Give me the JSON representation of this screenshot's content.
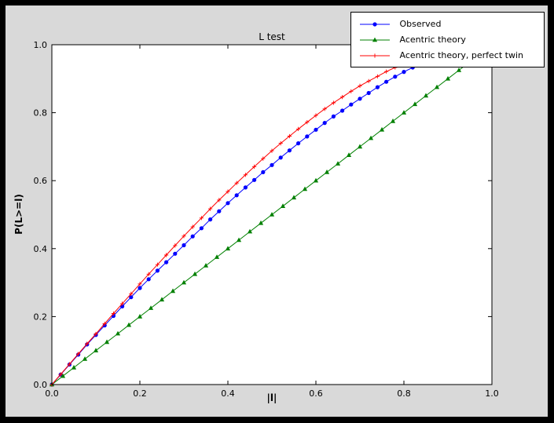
{
  "window": {
    "background": "#000000"
  },
  "figure": {
    "background": "#d9d9d9",
    "plot_background": "#ffffff",
    "frame_color": "#000000"
  },
  "chart_data": {
    "type": "line",
    "title": "L test",
    "xlabel": "|l|",
    "ylabel": "P(L>=l)",
    "xlim": [
      0,
      1
    ],
    "ylim": [
      0,
      1
    ],
    "grid": false,
    "xticks": [
      0,
      0.2,
      0.4,
      0.6,
      0.8,
      1.0
    ],
    "xtick_labels": [
      "0.0",
      "0.2",
      "0.4",
      "0.6",
      "0.8",
      "1.0"
    ],
    "yticks": [
      0,
      0.2,
      0.4,
      0.6,
      0.8,
      1.0
    ],
    "ytick_labels": [
      "0.0",
      "0.2",
      "0.4",
      "0.6",
      "0.8",
      "1.0"
    ],
    "legend": {
      "position": "upper right",
      "entries": [
        "Observed",
        "Acentric theory",
        "Acentric theory, perfect twin"
      ]
    },
    "series": [
      {
        "name": "Observed",
        "color": "#0000ff",
        "marker": "circle",
        "x": [
          0,
          0.02,
          0.04,
          0.06,
          0.08,
          0.1,
          0.12,
          0.14,
          0.16,
          0.18,
          0.2,
          0.22,
          0.24,
          0.26,
          0.28,
          0.3,
          0.32,
          0.34,
          0.36,
          0.38,
          0.4,
          0.42,
          0.44,
          0.46,
          0.48,
          0.5,
          0.52,
          0.54,
          0.56,
          0.58,
          0.6,
          0.62,
          0.64,
          0.66,
          0.68,
          0.7,
          0.72,
          0.74,
          0.76,
          0.78,
          0.8,
          0.82,
          0.84,
          0.86
        ],
        "y": [
          0,
          0.029,
          0.059,
          0.088,
          0.118,
          0.146,
          0.174,
          0.202,
          0.23,
          0.257,
          0.284,
          0.31,
          0.335,
          0.36,
          0.385,
          0.41,
          0.436,
          0.46,
          0.486,
          0.51,
          0.534,
          0.557,
          0.58,
          0.602,
          0.625,
          0.646,
          0.668,
          0.689,
          0.71,
          0.73,
          0.75,
          0.77,
          0.789,
          0.806,
          0.824,
          0.841,
          0.858,
          0.875,
          0.891,
          0.906,
          0.92,
          0.933,
          0.947,
          0.958
        ]
      },
      {
        "name": "Acentric theory",
        "color": "#008000",
        "marker": "triangle",
        "x": [
          0,
          0.025,
          0.05,
          0.075,
          0.1,
          0.125,
          0.15,
          0.175,
          0.2,
          0.225,
          0.25,
          0.275,
          0.3,
          0.325,
          0.35,
          0.375,
          0.4,
          0.425,
          0.45,
          0.475,
          0.5,
          0.525,
          0.55,
          0.575,
          0.6,
          0.625,
          0.65,
          0.675,
          0.7,
          0.725,
          0.75,
          0.775,
          0.8,
          0.825,
          0.85,
          0.875,
          0.9,
          0.925,
          0.95,
          0.975
        ],
        "y": [
          0,
          0.025,
          0.05,
          0.075,
          0.1,
          0.125,
          0.15,
          0.175,
          0.2,
          0.225,
          0.25,
          0.275,
          0.3,
          0.325,
          0.35,
          0.375,
          0.4,
          0.425,
          0.45,
          0.475,
          0.5,
          0.525,
          0.55,
          0.575,
          0.6,
          0.625,
          0.65,
          0.675,
          0.7,
          0.725,
          0.75,
          0.775,
          0.8,
          0.825,
          0.85,
          0.875,
          0.9,
          0.925,
          0.95,
          0.975
        ]
      },
      {
        "name": "Acentric theory, perfect twin",
        "color": "#ff0000",
        "marker": "plus",
        "x": [
          0,
          0.02,
          0.04,
          0.06,
          0.08,
          0.1,
          0.12,
          0.14,
          0.16,
          0.18,
          0.2,
          0.22,
          0.24,
          0.26,
          0.28,
          0.3,
          0.32,
          0.34,
          0.36,
          0.38,
          0.4,
          0.42,
          0.44,
          0.46,
          0.48,
          0.5,
          0.52,
          0.54,
          0.56,
          0.58,
          0.6,
          0.62,
          0.64,
          0.66,
          0.68,
          0.7,
          0.72,
          0.74,
          0.76,
          0.78,
          0.8,
          0.82,
          0.84,
          0.86,
          0.88,
          0.9,
          0.92,
          0.94,
          0.96,
          0.98,
          1.0
        ],
        "y": [
          0,
          0.03,
          0.06,
          0.09,
          0.12,
          0.149,
          0.179,
          0.209,
          0.238,
          0.267,
          0.296,
          0.325,
          0.353,
          0.381,
          0.409,
          0.437,
          0.464,
          0.49,
          0.517,
          0.543,
          0.568,
          0.593,
          0.617,
          0.641,
          0.665,
          0.688,
          0.71,
          0.731,
          0.752,
          0.772,
          0.792,
          0.811,
          0.829,
          0.846,
          0.863,
          0.879,
          0.893,
          0.907,
          0.921,
          0.933,
          0.944,
          0.954,
          0.964,
          0.972,
          0.979,
          0.986,
          0.991,
          0.995,
          0.998,
          0.999,
          1.0
        ]
      }
    ]
  }
}
